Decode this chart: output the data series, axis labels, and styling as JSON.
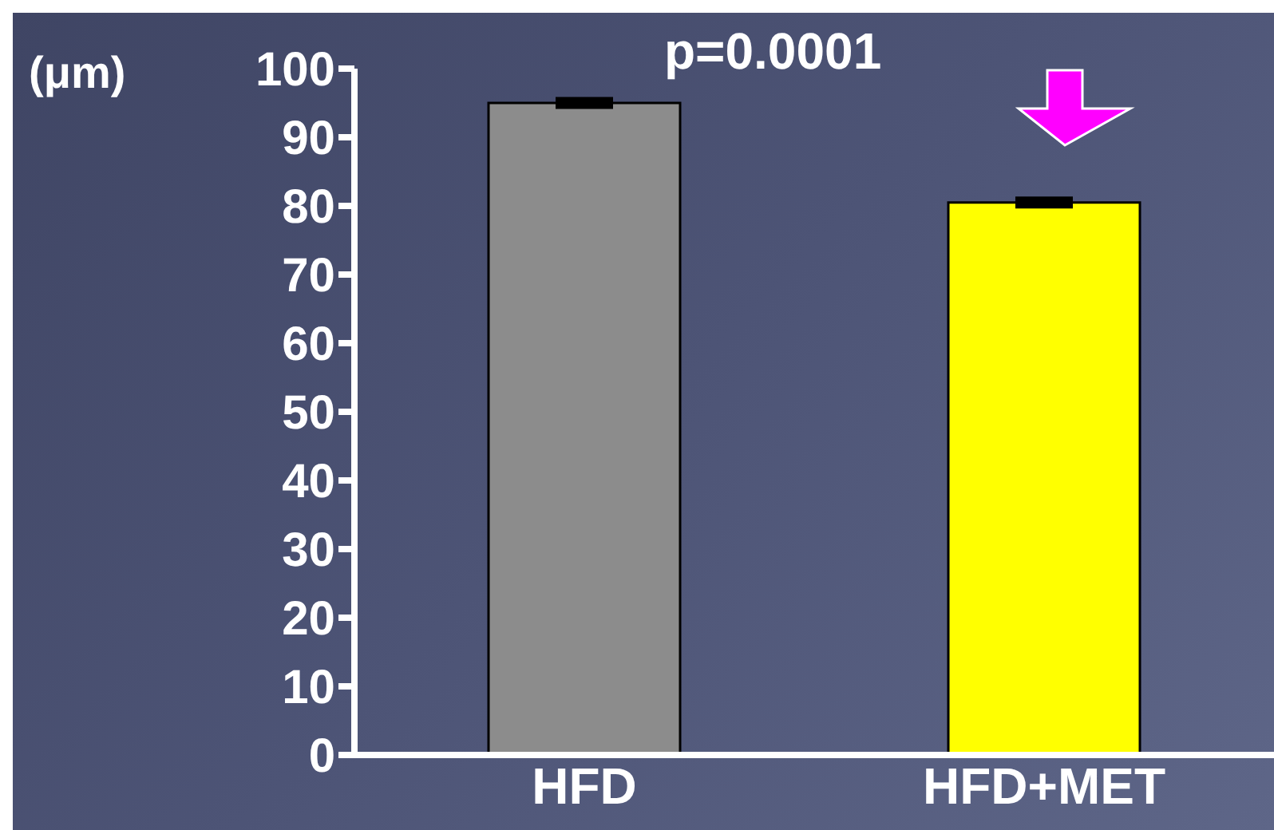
{
  "chart_data": {
    "type": "bar",
    "ylabel": "(μm)",
    "annotations": [
      "p=0.0001"
    ],
    "categories": [
      "HFD",
      "HFD+MET"
    ],
    "values": [
      95,
      80.5
    ],
    "errors": [
      0.4,
      0.4
    ],
    "colors": [
      "#8c8c8c",
      "#ffff00"
    ],
    "ylim": [
      0,
      100
    ],
    "yticks": [
      0,
      10,
      20,
      30,
      40,
      50,
      60,
      70,
      80,
      90,
      100
    ]
  }
}
